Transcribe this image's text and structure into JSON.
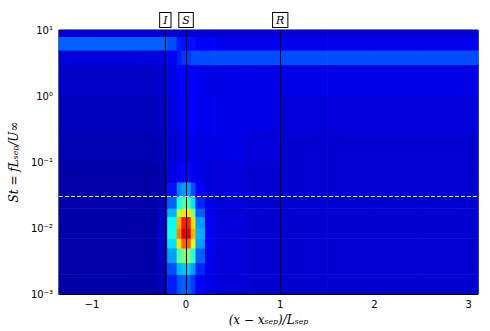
{
  "chart_data": {
    "type": "heatmap",
    "xlabel": "(x − xₛₑₚ)/Lₛₑₚ",
    "ylabel": "St = fLₛₑₚ/U∞",
    "log": "y",
    "xlim": [
      -1.35,
      3.1
    ],
    "ylim": [
      0.001,
      10
    ],
    "xticks": [
      {
        "value": -1,
        "label": "−1"
      },
      0,
      1,
      2,
      3
    ],
    "yticks": [
      {
        "value": 0.001,
        "label": "10⁻³"
      },
      {
        "value": 0.01,
        "label": "10⁻²"
      },
      {
        "value": 0.1,
        "label": "10⁻¹"
      },
      {
        "value": 1,
        "label": "10⁰"
      },
      {
        "value": 10,
        "label": "10¹"
      }
    ],
    "x_edges": [
      -1.35,
      -1.0,
      -0.6,
      -0.3,
      -0.2,
      -0.1,
      -0.05,
      0.05,
      0.1,
      0.2,
      0.3,
      0.6,
      1.0,
      1.5,
      2.0,
      2.5,
      3.1
    ],
    "y_edges": [
      0.001,
      0.002,
      0.003,
      0.005,
      0.007,
      0.01,
      0.015,
      0.02,
      0.03,
      0.05,
      0.1,
      0.3,
      1,
      3,
      5,
      8,
      10
    ],
    "color_range": [
      0,
      1
    ],
    "cells": [
      [
        0.04,
        0.04,
        0.04,
        0.06,
        0.15,
        0.2,
        0.22,
        0.18,
        0.12,
        0.1,
        0.09,
        0.08,
        0.08,
        0.08,
        0.08,
        0.08
      ],
      [
        0.04,
        0.04,
        0.04,
        0.06,
        0.2,
        0.3,
        0.32,
        0.28,
        0.16,
        0.1,
        0.09,
        0.08,
        0.08,
        0.08,
        0.08,
        0.08
      ],
      [
        0.04,
        0.04,
        0.04,
        0.07,
        0.28,
        0.45,
        0.5,
        0.42,
        0.22,
        0.11,
        0.09,
        0.08,
        0.08,
        0.08,
        0.08,
        0.08
      ],
      [
        0.04,
        0.04,
        0.04,
        0.08,
        0.35,
        0.65,
        0.78,
        0.6,
        0.28,
        0.12,
        0.09,
        0.08,
        0.08,
        0.08,
        0.08,
        0.08
      ],
      [
        0.04,
        0.04,
        0.04,
        0.08,
        0.4,
        0.75,
        0.9,
        0.7,
        0.3,
        0.12,
        0.09,
        0.08,
        0.08,
        0.08,
        0.08,
        0.08
      ],
      [
        0.04,
        0.04,
        0.04,
        0.08,
        0.38,
        0.7,
        0.85,
        0.65,
        0.28,
        0.12,
        0.09,
        0.08,
        0.08,
        0.08,
        0.08,
        0.08
      ],
      [
        0.04,
        0.04,
        0.04,
        0.07,
        0.3,
        0.55,
        0.65,
        0.5,
        0.22,
        0.1,
        0.09,
        0.08,
        0.08,
        0.08,
        0.08,
        0.08
      ],
      [
        0.04,
        0.04,
        0.04,
        0.06,
        0.22,
        0.4,
        0.45,
        0.35,
        0.16,
        0.1,
        0.09,
        0.08,
        0.08,
        0.08,
        0.08,
        0.08
      ],
      [
        0.04,
        0.04,
        0.04,
        0.05,
        0.14,
        0.25,
        0.28,
        0.2,
        0.12,
        0.09,
        0.09,
        0.08,
        0.08,
        0.08,
        0.08,
        0.08
      ],
      [
        0.04,
        0.04,
        0.04,
        0.05,
        0.09,
        0.12,
        0.13,
        0.11,
        0.1,
        0.09,
        0.09,
        0.08,
        0.08,
        0.08,
        0.08,
        0.08
      ],
      [
        0.05,
        0.05,
        0.05,
        0.06,
        0.08,
        0.1,
        0.11,
        0.11,
        0.1,
        0.1,
        0.1,
        0.09,
        0.08,
        0.08,
        0.08,
        0.08
      ],
      [
        0.06,
        0.06,
        0.06,
        0.07,
        0.09,
        0.11,
        0.12,
        0.12,
        0.11,
        0.11,
        0.1,
        0.1,
        0.09,
        0.09,
        0.09,
        0.09
      ],
      [
        0.07,
        0.07,
        0.07,
        0.08,
        0.1,
        0.12,
        0.12,
        0.12,
        0.11,
        0.1,
        0.1,
        0.1,
        0.1,
        0.1,
        0.1,
        0.1
      ],
      [
        0.09,
        0.09,
        0.09,
        0.1,
        0.12,
        0.15,
        0.18,
        0.2,
        0.2,
        0.2,
        0.2,
        0.2,
        0.2,
        0.2,
        0.2,
        0.2
      ],
      [
        0.22,
        0.22,
        0.22,
        0.22,
        0.2,
        0.15,
        0.14,
        0.14,
        0.12,
        0.12,
        0.11,
        0.11,
        0.11,
        0.11,
        0.11,
        0.11
      ],
      [
        0.08,
        0.08,
        0.08,
        0.08,
        0.08,
        0.08,
        0.08,
        0.08,
        0.08,
        0.08,
        0.08,
        0.08,
        0.08,
        0.08,
        0.08,
        0.08
      ]
    ],
    "vlines": [
      {
        "x": -0.22,
        "label": "I"
      },
      {
        "x": 0,
        "label": "S"
      },
      {
        "x": 1,
        "label": "R"
      }
    ],
    "hline": {
      "y": 0.03,
      "line_style": "dashed"
    }
  }
}
